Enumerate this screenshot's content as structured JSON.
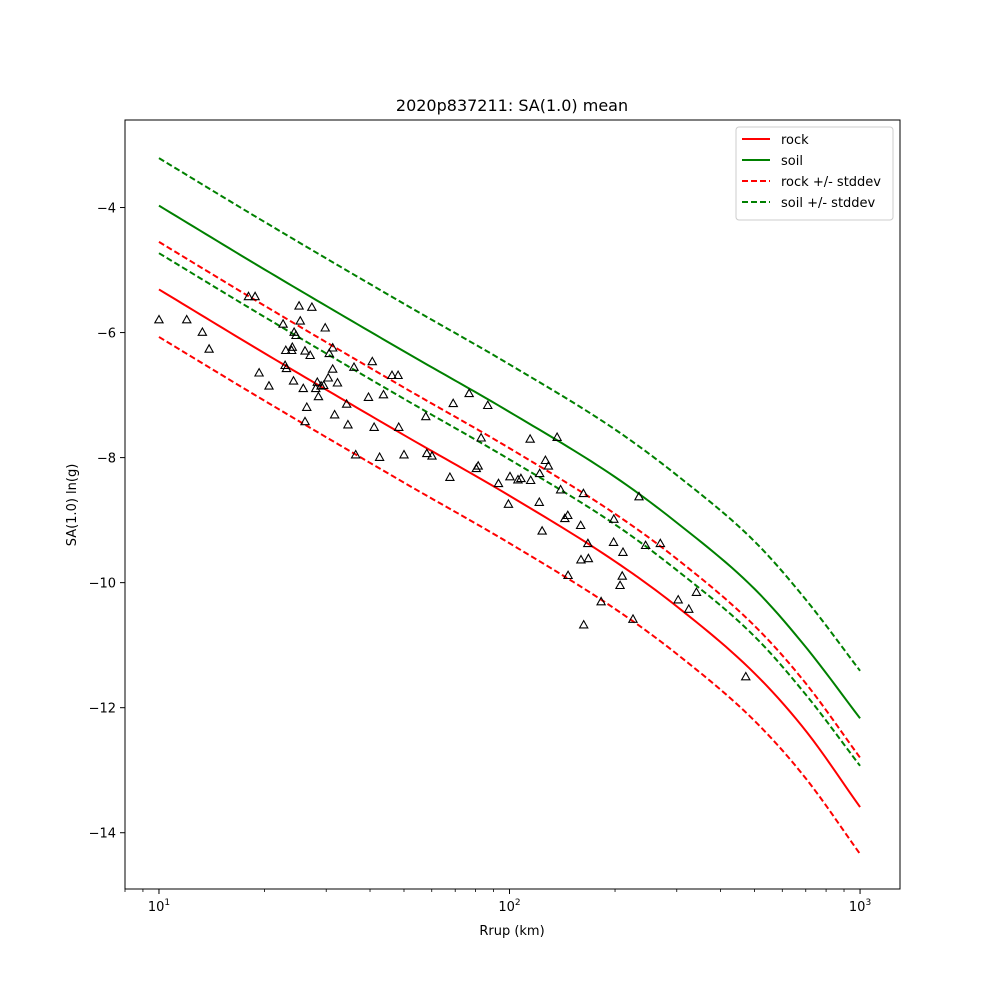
{
  "chart_data": {
    "type": "line",
    "title": "2020p837211: SA(1.0) mean",
    "xlabel": "Rrup (km)",
    "ylabel": "SA(1.0) ln(g)",
    "xscale": "log",
    "xlim": [
      8,
      1300
    ],
    "ylim": [
      -14.9,
      -2.6
    ],
    "yticks": [
      -14,
      -12,
      -10,
      -8,
      -6,
      -4
    ],
    "ytick_labels": [
      "−14",
      "−12",
      "−10",
      "−8",
      "−6",
      "−4"
    ],
    "xticks": [
      10,
      100,
      1000
    ],
    "xtick_bases": [
      "10",
      "10",
      "10"
    ],
    "xtick_exps": [
      "1",
      "2",
      "3"
    ],
    "grid": false,
    "legend_position": "top-right",
    "x": [
      10,
      20,
      50,
      100,
      200,
      300,
      500,
      700,
      1000
    ],
    "series": [
      {
        "name": "rock",
        "color": "#ff0000",
        "dash": "solid",
        "values": [
          -5.31,
          -6.33,
          -7.64,
          -8.61,
          -9.66,
          -10.38,
          -11.45,
          -12.37,
          -13.59
        ]
      },
      {
        "name": "soil",
        "color": "#008000",
        "dash": "solid",
        "values": [
          -3.97,
          -4.99,
          -6.3,
          -7.27,
          -8.31,
          -9.04,
          -10.1,
          -11.03,
          -12.17
        ]
      },
      {
        "name": "rock +/- stddev",
        "color": "#ff0000",
        "dash": "dashed",
        "values": [
          -4.55,
          -5.57,
          -6.88,
          -7.85,
          -8.9,
          -9.62,
          -10.69,
          -11.61,
          -12.8
        ]
      },
      {
        "name": "",
        "color": "#ff0000",
        "dash": "dashed",
        "values": [
          -6.07,
          -7.09,
          -8.4,
          -9.37,
          -10.42,
          -11.14,
          -12.21,
          -13.13,
          -14.34
        ]
      },
      {
        "name": "soil +/- stddev",
        "color": "#008000",
        "dash": "dashed",
        "values": [
          -3.21,
          -4.23,
          -5.54,
          -6.51,
          -7.55,
          -8.28,
          -9.34,
          -10.27,
          -11.41
        ]
      },
      {
        "name": "",
        "color": "#008000",
        "dash": "dashed",
        "values": [
          -4.73,
          -5.75,
          -7.06,
          -8.03,
          -9.07,
          -9.8,
          -10.86,
          -11.79,
          -12.93
        ]
      }
    ],
    "observations": {
      "marker": "triangle-open",
      "color": "#000000",
      "points": [
        [
          10.0,
          -5.8
        ],
        [
          12.0,
          -5.8
        ],
        [
          13.3,
          -6.0
        ],
        [
          13.9,
          -6.27
        ],
        [
          18.0,
          -5.43
        ],
        [
          18.8,
          -5.43
        ],
        [
          19.3,
          -6.65
        ],
        [
          20.6,
          -6.86
        ],
        [
          22.6,
          -5.87
        ],
        [
          22.9,
          -6.53
        ],
        [
          23.0,
          -6.29
        ],
        [
          23.1,
          -6.58
        ],
        [
          23.9,
          -6.29
        ],
        [
          24.0,
          -6.24
        ],
        [
          24.2,
          -6.78
        ],
        [
          24.3,
          -6.0
        ],
        [
          24.6,
          -6.05
        ],
        [
          25.1,
          -5.58
        ],
        [
          25.3,
          -5.82
        ],
        [
          25.8,
          -6.9
        ],
        [
          26.1,
          -6.3
        ],
        [
          26.1,
          -7.43
        ],
        [
          26.4,
          -7.2
        ],
        [
          27.0,
          -6.37
        ],
        [
          27.3,
          -5.6
        ],
        [
          28.0,
          -6.9
        ],
        [
          28.3,
          -6.8
        ],
        [
          28.5,
          -7.03
        ],
        [
          29.0,
          -6.86
        ],
        [
          29.5,
          -6.85
        ],
        [
          29.8,
          -5.93
        ],
        [
          30.4,
          -6.73
        ],
        [
          30.6,
          -6.34
        ],
        [
          31.3,
          -6.25
        ],
        [
          31.3,
          -6.59
        ],
        [
          31.7,
          -7.32
        ],
        [
          32.3,
          -6.81
        ],
        [
          34.3,
          -7.15
        ],
        [
          34.6,
          -7.48
        ],
        [
          36.0,
          -6.56
        ],
        [
          36.4,
          -7.96
        ],
        [
          39.6,
          -7.04
        ],
        [
          40.6,
          -6.47
        ],
        [
          41.1,
          -7.52
        ],
        [
          42.6,
          -8.0
        ],
        [
          43.7,
          -7.0
        ],
        [
          46.2,
          -6.69
        ],
        [
          48.1,
          -6.69
        ],
        [
          48.3,
          -7.52
        ],
        [
          50.0,
          -7.96
        ],
        [
          57.7,
          -7.35
        ],
        [
          58.1,
          -7.94
        ],
        [
          60.1,
          -7.98
        ],
        [
          67.6,
          -8.32
        ],
        [
          69.1,
          -7.14
        ],
        [
          76.7,
          -6.98
        ],
        [
          80.4,
          -8.18
        ],
        [
          81.4,
          -8.14
        ],
        [
          83.0,
          -7.69
        ],
        [
          86.7,
          -7.17
        ],
        [
          93.0,
          -8.42
        ],
        [
          99.3,
          -8.75
        ],
        [
          100.3,
          -8.31
        ],
        [
          105.7,
          -8.36
        ],
        [
          107.8,
          -8.34
        ],
        [
          114.9,
          -8.37
        ],
        [
          114.5,
          -7.71
        ],
        [
          121.9,
          -8.26
        ],
        [
          121.6,
          -8.72
        ],
        [
          123.9,
          -9.18
        ],
        [
          126.6,
          -8.05
        ],
        [
          129.1,
          -8.14
        ],
        [
          136.7,
          -7.68
        ],
        [
          139.9,
          -8.52
        ],
        [
          143.8,
          -8.98
        ],
        [
          146.6,
          -8.93
        ],
        [
          146.9,
          -9.89
        ],
        [
          159.6,
          -9.09
        ],
        [
          159.9,
          -9.64
        ],
        [
          162.5,
          -8.58
        ],
        [
          162.8,
          -10.68
        ],
        [
          167.3,
          -9.38
        ],
        [
          167.9,
          -9.62
        ],
        [
          182.5,
          -10.31
        ],
        [
          198.1,
          -9.36
        ],
        [
          198.4,
          -8.99
        ],
        [
          206.7,
          -10.05
        ],
        [
          209.7,
          -9.9
        ],
        [
          210.7,
          -9.52
        ],
        [
          225.0,
          -10.59
        ],
        [
          234.1,
          -8.63
        ],
        [
          244.5,
          -9.41
        ],
        [
          269.3,
          -9.38
        ],
        [
          302.8,
          -10.28
        ],
        [
          324.6,
          -10.43
        ],
        [
          341.4,
          -10.16
        ],
        [
          472.0,
          -11.51
        ]
      ]
    }
  }
}
